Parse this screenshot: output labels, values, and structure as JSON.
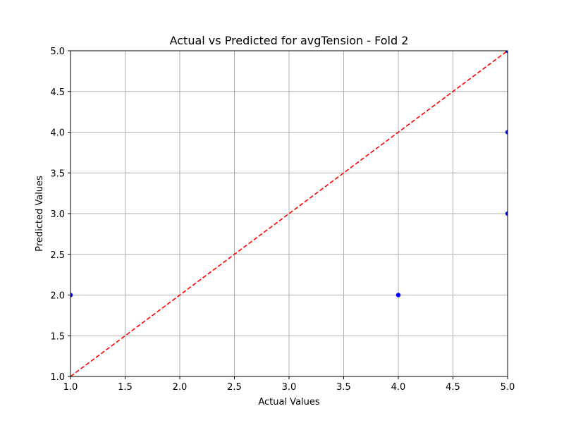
{
  "chart_data": {
    "type": "scatter",
    "title": "Actual vs Predicted for avgTension - Fold 2",
    "xlabel": "Actual Values",
    "ylabel": "Predicted Values",
    "xlim": [
      1.0,
      5.0
    ],
    "ylim": [
      1.0,
      5.0
    ],
    "xticks": [
      "1.0",
      "1.5",
      "2.0",
      "2.5",
      "3.0",
      "3.5",
      "4.0",
      "4.5",
      "5.0"
    ],
    "yticks": [
      "1.0",
      "1.5",
      "2.0",
      "2.5",
      "3.0",
      "3.5",
      "4.0",
      "4.5",
      "5.0"
    ],
    "grid": true,
    "series": [
      {
        "kind": "scatter",
        "color": "#0000ff",
        "points": [
          {
            "x": 1,
            "y": 2
          },
          {
            "x": 4,
            "y": 2
          },
          {
            "x": 5,
            "y": 5
          },
          {
            "x": 5,
            "y": 4
          },
          {
            "x": 5,
            "y": 3
          }
        ]
      },
      {
        "kind": "line",
        "style": "dashed",
        "color": "#ff0000",
        "points": [
          {
            "x": 1,
            "y": 1
          },
          {
            "x": 5,
            "y": 5
          }
        ]
      }
    ]
  }
}
